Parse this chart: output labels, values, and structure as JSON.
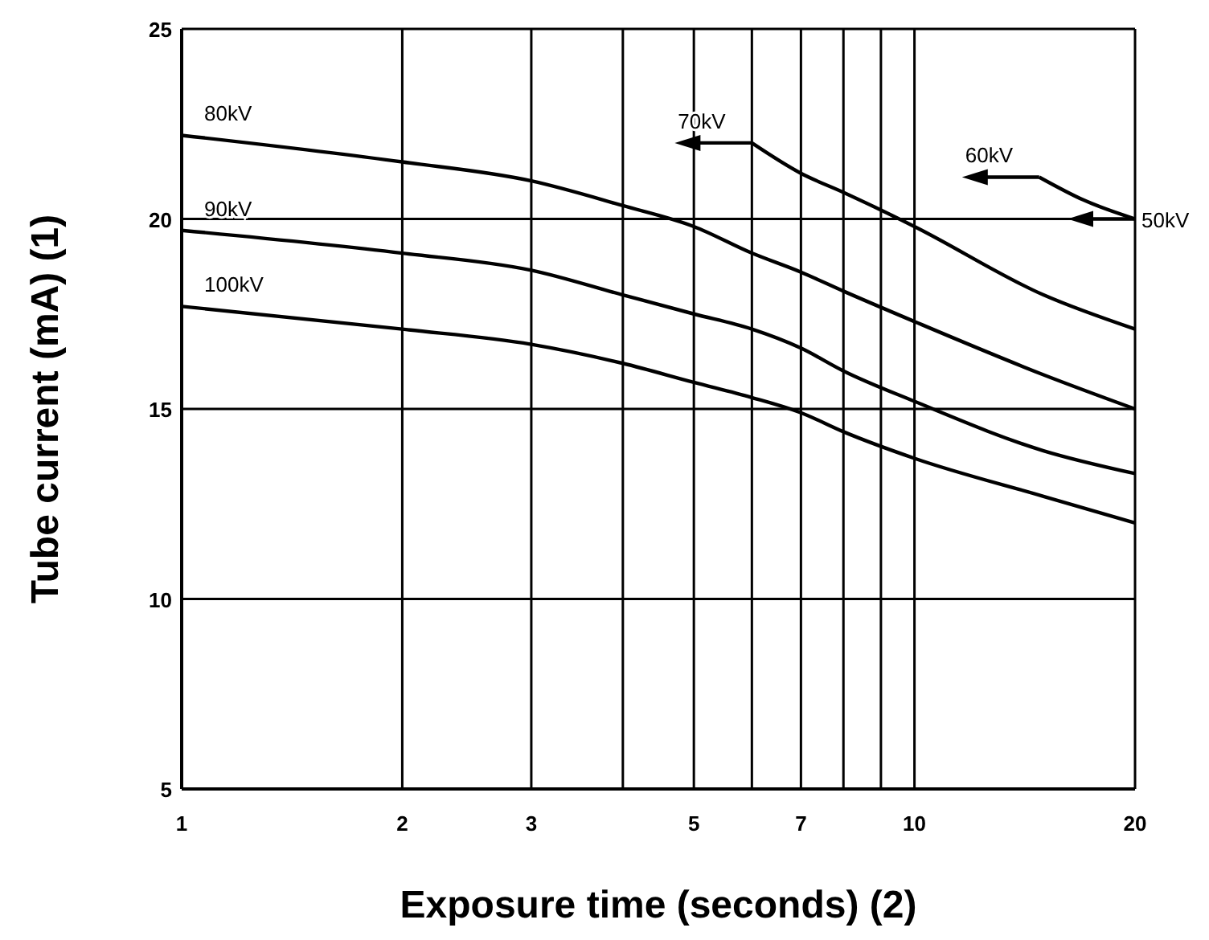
{
  "chart_data": {
    "type": "line",
    "xlabel": "Exposure time (seconds) (2)",
    "ylabel": "Tube current (mA) (1)",
    "log": "x",
    "xlim": [
      1,
      20
    ],
    "ylim": [
      5,
      25
    ],
    "xticks": [
      1,
      2,
      3,
      {
        "value": 4,
        "label": null
      },
      5,
      {
        "value": 6,
        "label": null
      },
      7,
      {
        "value": 8,
        "label": null
      },
      {
        "value": 9,
        "label": null
      },
      10,
      20
    ],
    "yticks": [
      5,
      10,
      15,
      20,
      25
    ],
    "grid": true,
    "marker": "none",
    "line_style": "solid",
    "ref_lines": [
      {
        "axis": "y",
        "value": 20,
        "label": "50kV",
        "color": "#000000"
      }
    ],
    "series": [
      {
        "name": "80kV",
        "color": "#000000",
        "x": [
          1,
          2,
          3,
          4,
          5,
          6,
          7,
          8,
          10,
          15,
          20
        ],
        "values": [
          22.2,
          21.5,
          21.0,
          20.35,
          19.8,
          19.1,
          18.6,
          18.1,
          17.3,
          15.9,
          15.0
        ]
      },
      {
        "name": "90kV",
        "color": "#000000",
        "x": [
          1,
          2,
          3,
          4,
          5,
          6,
          7,
          8,
          10,
          15,
          20
        ],
        "values": [
          19.7,
          19.1,
          18.65,
          18.0,
          17.5,
          17.1,
          16.6,
          16.0,
          15.2,
          13.9,
          13.3
        ]
      },
      {
        "name": "100kV",
        "color": "#000000",
        "x": [
          1,
          2,
          3,
          4,
          5,
          6,
          7,
          8,
          10,
          15,
          20
        ],
        "values": [
          17.7,
          17.1,
          16.7,
          16.2,
          15.7,
          15.3,
          14.9,
          14.4,
          13.7,
          12.7,
          12.0
        ]
      },
      {
        "name": "70kV",
        "color": "#000000",
        "x": [
          6,
          7,
          8,
          10,
          15,
          20
        ],
        "values": [
          22.0,
          21.2,
          20.7,
          19.8,
          18.0,
          17.1
        ]
      },
      {
        "name": "60kV",
        "color": "#000000",
        "x": [
          14.8,
          17,
          20
        ],
        "values": [
          21.1,
          20.5,
          20.0
        ]
      }
    ]
  }
}
